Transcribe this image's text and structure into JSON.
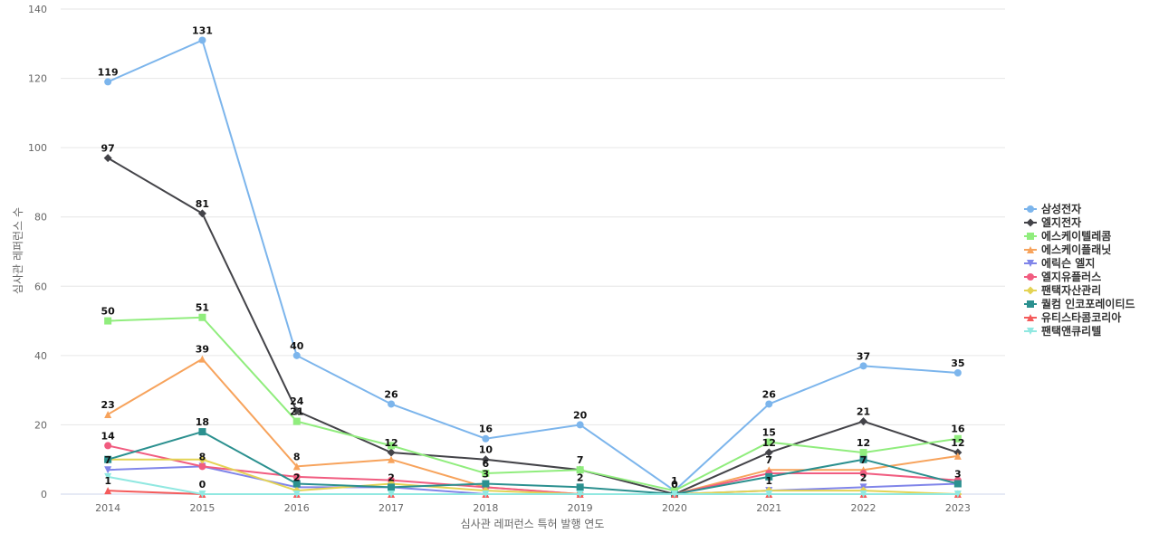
{
  "chart_data": {
    "type": "line",
    "title": "",
    "xlabel": "심사관 레퍼런스 특허 발행 연도",
    "ylabel": "심사관 레퍼런스 수",
    "ylim": [
      0,
      140
    ],
    "yticks": [
      0,
      20,
      40,
      60,
      80,
      100,
      120,
      140
    ],
    "grid": true,
    "legend_position": "right",
    "x": [
      "2014",
      "2015",
      "2016",
      "2017",
      "2018",
      "2019",
      "2020",
      "2021",
      "2022",
      "2023"
    ],
    "series": [
      {
        "name": "삼성전자",
        "color": "#7cb5ec",
        "marker": "circle",
        "values": [
          119,
          131,
          40,
          26,
          16,
          20,
          1,
          26,
          37,
          35
        ],
        "labeled": true
      },
      {
        "name": "엘지전자",
        "color": "#434348",
        "marker": "diamond",
        "values": [
          97,
          81,
          24,
          12,
          10,
          7,
          0,
          12,
          21,
          12
        ],
        "labeled": true
      },
      {
        "name": "에스케이텔레콤",
        "color": "#90ed7d",
        "marker": "square",
        "values": [
          50,
          51,
          21,
          14,
          6,
          7,
          1,
          15,
          12,
          16
        ],
        "labeled": [
          true,
          true,
          true,
          false,
          true,
          false,
          false,
          true,
          true,
          true
        ]
      },
      {
        "name": "에스케이플래닛",
        "color": "#f7a35c",
        "marker": "triangle",
        "values": [
          23,
          39,
          8,
          10,
          2,
          0,
          0,
          7,
          7,
          11
        ],
        "labeled": [
          true,
          true,
          true,
          false,
          false,
          false,
          false,
          true,
          true,
          false
        ]
      },
      {
        "name": "에릭슨 엘지",
        "color": "#8085e9",
        "marker": "triangle-down",
        "values": [
          7,
          8,
          2,
          2,
          0,
          0,
          0,
          1,
          2,
          3
        ],
        "labeled": [
          true,
          false,
          true,
          true,
          false,
          false,
          false,
          true,
          true,
          true
        ]
      },
      {
        "name": "엘지유플러스",
        "color": "#f15c80",
        "marker": "circle",
        "values": [
          14,
          8,
          5,
          4,
          2,
          0,
          0,
          6,
          6,
          4
        ],
        "labeled": [
          true,
          true,
          false,
          false,
          false,
          false,
          false,
          false,
          false,
          false
        ]
      },
      {
        "name": "팬택자산관리",
        "color": "#e4d354",
        "marker": "diamond",
        "values": [
          10,
          10,
          1,
          3,
          1,
          0,
          0,
          1,
          1,
          0
        ],
        "labeled": false
      },
      {
        "name": "퀄컴 인코포레이티드",
        "color": "#2b908f",
        "marker": "square",
        "values": [
          10,
          18,
          3,
          2,
          3,
          2,
          0,
          5,
          10,
          3
        ],
        "labeled": [
          false,
          true,
          false,
          false,
          true,
          true,
          false,
          false,
          false,
          false
        ]
      },
      {
        "name": "유티스타콤코리아",
        "color": "#f45b5b",
        "marker": "triangle",
        "values": [
          1,
          0,
          0,
          0,
          0,
          0,
          0,
          0,
          0,
          0
        ],
        "labeled": [
          true,
          false,
          false,
          false,
          false,
          false,
          false,
          false,
          false,
          false
        ]
      },
      {
        "name": "팬택앤큐리텔",
        "color": "#91e8e1",
        "marker": "triangle-down",
        "values": [
          5,
          0,
          0,
          0,
          0,
          0,
          0,
          0,
          0,
          0
        ],
        "labeled": [
          false,
          true,
          false,
          false,
          false,
          false,
          false,
          false,
          false,
          false
        ]
      }
    ]
  }
}
